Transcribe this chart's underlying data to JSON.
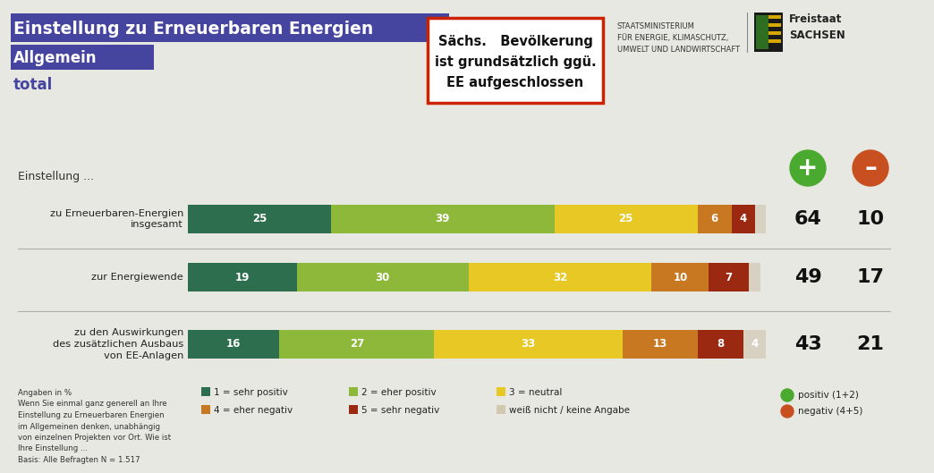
{
  "title_line1": "Einstellung zu Erneuerbaren Energien",
  "title_line2": "Allgemein",
  "title_line3": "total",
  "title_bg_color": "#4545a0",
  "title_text_color": "#ffffff",
  "title3_color": "#4545a0",
  "bg_color": "#e8e8e2",
  "callout_text": "Sächs.   Bevölkerung\nist grundsätzlich ggü.\nEE aufgeschlossen",
  "callout_border": "#cc2200",
  "header_ministry": "STAATSMINISTERIUM\nFÜR ENERGIE, KLIMASCHUTZ,\nUMWELT UND LANDWIRTSCHAFT",
  "header_sachsen": "Freistaat\nSACHSEN",
  "bar_labels": [
    "zu Erneuerbaren-Energien\ninsgesamt",
    "zur Energiewende",
    "zu den Auswirkungen\ndes zusätzlichen Ausbaus\nvon EE-Anlagen"
  ],
  "bar_data": [
    [
      25,
      39,
      25,
      6,
      4,
      2
    ],
    [
      19,
      30,
      32,
      10,
      7,
      2
    ],
    [
      16,
      27,
      33,
      13,
      8,
      4
    ]
  ],
  "colors": [
    "#2d6e4e",
    "#8db83a",
    "#e8c825",
    "#c87820",
    "#9b2810",
    "#d8d0c0"
  ],
  "positive_sums": [
    "64",
    "49",
    "43"
  ],
  "negative_sums": [
    "10",
    "17",
    "21"
  ],
  "legend_labels": [
    "1 = sehr positiv",
    "2 = eher positiv",
    "3 = neutral",
    "4 = eher negativ",
    "5 = sehr negativ",
    "weiß nicht / keine Angabe"
  ],
  "footnote_left": "Angaben in %\nWenn Sie einmal ganz generell an Ihre\nEinstellung zu Erneuerbaren Energien\nim Allgemeinen denken, unabhängig\nvon einzelnen Projekten vor Ort. Wie ist\nIhre Einstellung ...\nBasis: Alle Befragten N = 1.517"
}
